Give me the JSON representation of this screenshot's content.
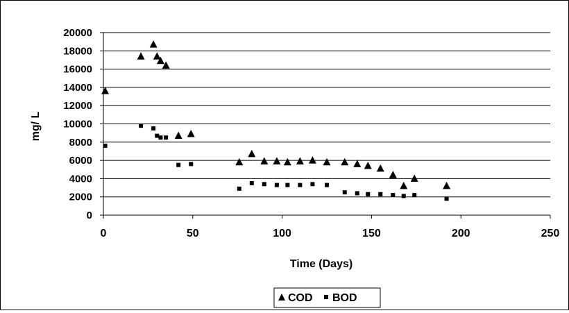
{
  "chart_data": {
    "type": "scatter",
    "title": "",
    "xlabel": "Time (Days)",
    "ylabel": "mg/ L",
    "xlim": [
      0,
      250
    ],
    "ylim": [
      0,
      20000
    ],
    "xticks": [
      "0",
      "50",
      "100",
      "150",
      "200",
      "250"
    ],
    "yticks": [
      "0",
      "2000",
      "4000",
      "6000",
      "8000",
      "10000",
      "12000",
      "14000",
      "16000",
      "18000",
      "20000"
    ],
    "grid": "horizontal",
    "legend_position": "bottom",
    "series": [
      {
        "name": "COD",
        "marker": "triangle",
        "color": "#000000",
        "x": [
          1,
          21,
          28,
          30,
          32,
          35,
          42,
          49,
          76,
          83,
          90,
          97,
          103,
          110,
          117,
          125,
          135,
          142,
          148,
          155,
          162,
          168,
          174,
          192
        ],
        "y": [
          13600,
          17400,
          18700,
          17400,
          16900,
          16400,
          8700,
          8900,
          5800,
          6700,
          5900,
          5900,
          5800,
          5900,
          6000,
          5800,
          5800,
          5600,
          5400,
          5100,
          4400,
          3200,
          4000,
          3200
        ]
      },
      {
        "name": "BOD",
        "marker": "square",
        "color": "#000000",
        "x": [
          1,
          21,
          28,
          30,
          32,
          35,
          42,
          49,
          76,
          83,
          90,
          97,
          103,
          110,
          117,
          125,
          135,
          142,
          148,
          155,
          162,
          168,
          174,
          192
        ],
        "y": [
          7600,
          9800,
          9500,
          8700,
          8500,
          8500,
          5500,
          5600,
          2900,
          3500,
          3400,
          3300,
          3300,
          3300,
          3400,
          3300,
          2500,
          2400,
          2300,
          2300,
          2200,
          2100,
          2200,
          1800
        ]
      }
    ]
  }
}
